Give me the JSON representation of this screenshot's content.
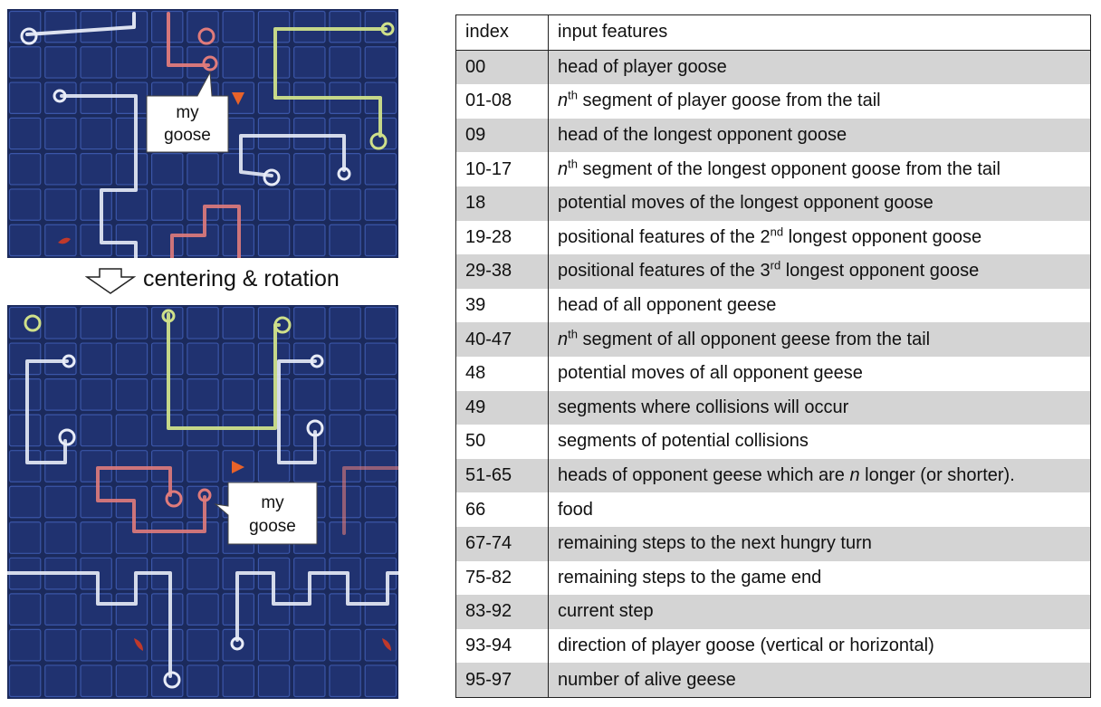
{
  "boards": {
    "top": {
      "callout": [
        "my",
        "goose"
      ]
    },
    "bottom": {
      "callout": [
        "my",
        "goose"
      ]
    }
  },
  "arrow_label": "centering & rotation",
  "table": {
    "header": {
      "index": "index",
      "features": "input features"
    },
    "rows": [
      {
        "index": "00",
        "parts": [
          [
            "t",
            "head of player goose"
          ]
        ]
      },
      {
        "index": "01-08",
        "parts": [
          [
            "i",
            "n"
          ],
          [
            "s",
            "th"
          ],
          [
            "t",
            " segment of player goose from the tail"
          ]
        ]
      },
      {
        "index": "09",
        "parts": [
          [
            "t",
            "head of the longest opponent  goose"
          ]
        ]
      },
      {
        "index": "10-17",
        "parts": [
          [
            "i",
            "n"
          ],
          [
            "s",
            "th"
          ],
          [
            "t",
            " segment of the longest opponent  goose from the tail"
          ]
        ]
      },
      {
        "index": "18",
        "parts": [
          [
            "t",
            "potential moves of the longest opponent  goose"
          ]
        ]
      },
      {
        "index": "19-28",
        "parts": [
          [
            "t",
            "positional features of the 2"
          ],
          [
            "s",
            "nd"
          ],
          [
            "t",
            " longest opponent  goose"
          ]
        ]
      },
      {
        "index": "29-38",
        "parts": [
          [
            "t",
            "positional features of the 3"
          ],
          [
            "s",
            "rd"
          ],
          [
            "t",
            " longest opponent  goose"
          ]
        ]
      },
      {
        "index": "39",
        "parts": [
          [
            "t",
            "head of all opponent  geese"
          ]
        ]
      },
      {
        "index": "40-47",
        "parts": [
          [
            "i",
            "n"
          ],
          [
            "s",
            "th"
          ],
          [
            "t",
            " segment of all opponent  geese from the tail"
          ]
        ]
      },
      {
        "index": "48",
        "parts": [
          [
            "t",
            "potential moves of all opponent  geese"
          ]
        ]
      },
      {
        "index": "49",
        "parts": [
          [
            "t",
            "segments where collisions will occur"
          ]
        ]
      },
      {
        "index": "50",
        "parts": [
          [
            "t",
            "segments of potential collisions"
          ]
        ]
      },
      {
        "index": "51-65",
        "parts": [
          [
            "t",
            "heads of opponent  geese which are "
          ],
          [
            "i",
            "n"
          ],
          [
            "t",
            " longer (or shorter)."
          ]
        ]
      },
      {
        "index": "66",
        "parts": [
          [
            "t",
            "food"
          ]
        ]
      },
      {
        "index": "67-74",
        "parts": [
          [
            "t",
            "remaining steps to the next hungry turn"
          ]
        ]
      },
      {
        "index": "75-82",
        "parts": [
          [
            "t",
            "remaining steps to the game end"
          ]
        ]
      },
      {
        "index": "83-92",
        "parts": [
          [
            "t",
            "current step"
          ]
        ]
      },
      {
        "index": "93-94",
        "parts": [
          [
            "t",
            "direction of player goose (vertical or horizontal)"
          ]
        ]
      },
      {
        "index": "95-97",
        "parts": [
          [
            "t",
            "number of alive geese"
          ]
        ]
      }
    ]
  },
  "colors": {
    "board_bg": "#1b2a5c",
    "grid": "#3b56a8",
    "goose_white": "#e8ecf7",
    "goose_red": "#e07b7b",
    "goose_green": "#cfe08a",
    "food": "#c0392b",
    "marker": "#e8622a",
    "row_shade": "#d4d4d4"
  }
}
